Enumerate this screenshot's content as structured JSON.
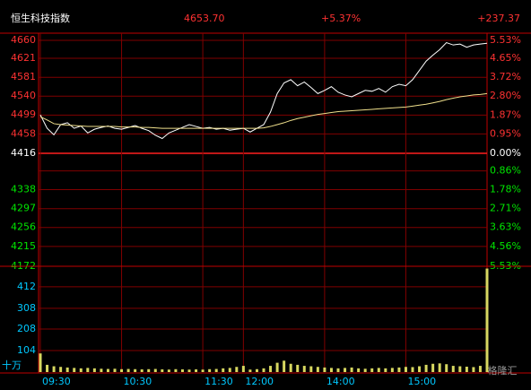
{
  "chart_data": {
    "type": "line",
    "title": "恒生科技指数",
    "last": "4653.70",
    "change_pct": "+5.37%",
    "change": "+237.37",
    "up_color": "#ff3232",
    "down_color": "#00e600",
    "grid": true,
    "xlim": [
      0,
      330
    ],
    "xticks": [
      {
        "value": 0,
        "label": "09:30"
      },
      {
        "value": 60,
        "label": "10:30"
      },
      {
        "value": 120,
        "label": "11:30"
      },
      {
        "value": 150,
        "label": "12:00"
      },
      {
        "value": 210,
        "label": "14:00"
      },
      {
        "value": 270,
        "label": "15:00"
      }
    ],
    "ylim": [
      4172,
      4660
    ],
    "yticks": [
      4660,
      4621,
      4581,
      4540,
      4499,
      4458,
      4416,
      4338,
      4297,
      4256,
      4215,
      4172
    ],
    "y2lim": [
      -5.53,
      5.53
    ],
    "y2ticks": [
      {
        "value": 5.53,
        "label": "5.53%"
      },
      {
        "value": 4.65,
        "label": "4.65%"
      },
      {
        "value": 3.72,
        "label": "3.72%"
      },
      {
        "value": 2.8,
        "label": "2.80%"
      },
      {
        "value": 1.87,
        "label": "1.87%"
      },
      {
        "value": 0.95,
        "label": "0.95%"
      },
      {
        "value": 0,
        "label": "0.00%"
      },
      {
        "value": -0.86,
        "label": "0.86%"
      },
      {
        "value": -1.78,
        "label": "1.78%"
      },
      {
        "value": -2.71,
        "label": "2.71%"
      },
      {
        "value": -3.63,
        "label": "3.63%"
      },
      {
        "value": -4.56,
        "label": "4.56%"
      },
      {
        "value": -5.53,
        "label": "5.53%"
      }
    ],
    "x": [
      0,
      5,
      10,
      15,
      20,
      25,
      30,
      35,
      40,
      45,
      50,
      55,
      60,
      65,
      70,
      75,
      80,
      85,
      90,
      95,
      100,
      105,
      110,
      115,
      120,
      125,
      130,
      135,
      140,
      145,
      150,
      155,
      160,
      165,
      170,
      175,
      180,
      185,
      190,
      195,
      200,
      205,
      210,
      215,
      220,
      225,
      230,
      235,
      240,
      245,
      250,
      255,
      260,
      265,
      270,
      275,
      280,
      285,
      290,
      295,
      300,
      305,
      310,
      315,
      320,
      325,
      330
    ],
    "series": [
      {
        "color": "#ffffff",
        "values": [
          4499,
          4470,
          4456,
          4478,
          4482,
          4470,
          4475,
          4460,
          4468,
          4472,
          4475,
          4470,
          4468,
          4472,
          4476,
          4470,
          4465,
          4455,
          4448,
          4460,
          4466,
          4472,
          4478,
          4474,
          4470,
          4472,
          4468,
          4470,
          4466,
          4468,
          4470,
          4462,
          4470,
          4478,
          4505,
          4545,
          4568,
          4575,
          4562,
          4570,
          4558,
          4545,
          4552,
          4560,
          4548,
          4542,
          4538,
          4545,
          4552,
          4550,
          4556,
          4548,
          4560,
          4565,
          4562,
          4575,
          4595,
          4615,
          4628,
          4640,
          4655,
          4650,
          4652,
          4645,
          4650,
          4652,
          4653.7
        ]
      },
      {
        "color": "#f0e08c",
        "values": [
          4495,
          4488,
          4480,
          4478,
          4477,
          4476,
          4475,
          4474,
          4474,
          4474,
          4474,
          4474,
          4473,
          4473,
          4473,
          4472,
          4472,
          4471,
          4470,
          4470,
          4470,
          4470,
          4470,
          4470,
          4470,
          4470,
          4470,
          4470,
          4470,
          4470,
          4470,
          4470,
          4470,
          4471,
          4474,
          4478,
          4482,
          4487,
          4491,
          4494,
          4497,
          4500,
          4502,
          4504,
          4506,
          4507,
          4508,
          4509,
          4510,
          4511,
          4512,
          4513,
          4514,
          4515,
          4516,
          4518,
          4520,
          4522,
          4525,
          4528,
          4532,
          4535,
          4538,
          4540,
          4542,
          4543,
          4545
        ]
      }
    ],
    "volume": {
      "color": "#d8d860",
      "label_color": "#00c8ff",
      "unit": "十万",
      "ylim": [
        0,
        511
      ],
      "yticks": [
        412,
        308,
        208,
        104
      ],
      "values": [
        90,
        35,
        28,
        25,
        22,
        20,
        18,
        20,
        18,
        16,
        15,
        16,
        14,
        15,
        14,
        13,
        14,
        15,
        13,
        12,
        14,
        13,
        12,
        13,
        12,
        14,
        15,
        18,
        20,
        25,
        30,
        12,
        14,
        18,
        30,
        45,
        55,
        40,
        35,
        30,
        28,
        25,
        22,
        20,
        18,
        20,
        22,
        18,
        16,
        18,
        20,
        18,
        20,
        22,
        25,
        24,
        28,
        35,
        40,
        42,
        38,
        30,
        28,
        26,
        24,
        30,
        500
      ]
    },
    "watermark": "格隆汇"
  }
}
